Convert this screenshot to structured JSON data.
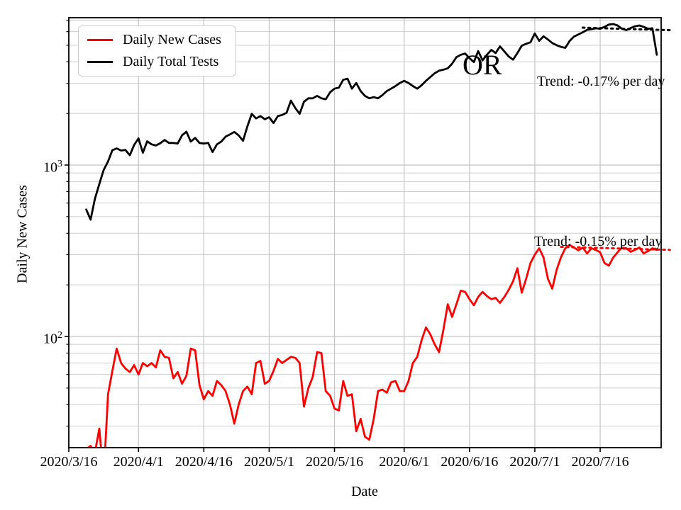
{
  "chart_data": {
    "type": "line",
    "title": "",
    "xlabel": "Date",
    "ylabel": "Daily New Cases",
    "yscale": "log",
    "grid": true,
    "legend_position": "upper-left",
    "xlim": [
      "2020/3/16",
      "2020/7/30"
    ],
    "ylim": [
      22,
      7300
    ],
    "x_ticks": [
      "2020/3/16",
      "2020/4/1",
      "2020/4/16",
      "2020/5/1",
      "2020/5/16",
      "2020/6/1",
      "2020/6/16",
      "2020/7/1",
      "2020/7/16"
    ],
    "y_ticks": [
      {
        "value": 100,
        "base": "10",
        "exp": "2"
      },
      {
        "value": 1000,
        "base": "10",
        "exp": "3"
      }
    ],
    "y_minor_gridlines": [
      30,
      40,
      50,
      60,
      70,
      80,
      90,
      200,
      300,
      400,
      500,
      600,
      700,
      800,
      900,
      2000,
      3000,
      4000,
      5000,
      6000,
      7000
    ],
    "series_start_date": "2020/3/20",
    "frequency": "daily",
    "series": [
      {
        "name": "Daily New Cases",
        "color": "#ff0000",
        "values": [
          22,
          23,
          21,
          29,
          15,
          46,
          63,
          85,
          70,
          65,
          62,
          68,
          60,
          70,
          67,
          70,
          66,
          83,
          76,
          75,
          57,
          62,
          53,
          59,
          85,
          83,
          52,
          43,
          48,
          45,
          55,
          52,
          48,
          40,
          31,
          40,
          48,
          51,
          46,
          70,
          72,
          53,
          55,
          63,
          74,
          70,
          73,
          76,
          75,
          70,
          39,
          50,
          58,
          81,
          80,
          48,
          45,
          38,
          37,
          55,
          45,
          46,
          28,
          33,
          26,
          25,
          33,
          48,
          49,
          47,
          54,
          55,
          48,
          48,
          55,
          70,
          76,
          95,
          113,
          103,
          90,
          81,
          109,
          154,
          130,
          154,
          185,
          182,
          165,
          152,
          170,
          182,
          172,
          165,
          168,
          157,
          170,
          187,
          210,
          250,
          180,
          217,
          268,
          300,
          327,
          289,
          217,
          190,
          244,
          290,
          327,
          342,
          330,
          318,
          330,
          305,
          327,
          320,
          310,
          268,
          259,
          289,
          310,
          330,
          327,
          312,
          320,
          330,
          305,
          315,
          327,
          320
        ]
      },
      {
        "name": "Daily Total Tests",
        "color": "#000000",
        "values": [
          550,
          480,
          635,
          775,
          935,
          1050,
          1220,
          1250,
          1215,
          1225,
          1140,
          1310,
          1430,
          1180,
          1375,
          1320,
          1300,
          1340,
          1400,
          1345,
          1345,
          1335,
          1490,
          1565,
          1370,
          1440,
          1345,
          1335,
          1345,
          1190,
          1320,
          1370,
          1465,
          1510,
          1560,
          1490,
          1385,
          1680,
          1990,
          1870,
          1930,
          1850,
          1900,
          1760,
          1930,
          1960,
          2020,
          2375,
          2150,
          1990,
          2340,
          2450,
          2450,
          2530,
          2450,
          2420,
          2660,
          2790,
          2830,
          3140,
          3190,
          2790,
          3010,
          2700,
          2530,
          2450,
          2490,
          2450,
          2560,
          2700,
          2790,
          2890,
          3010,
          3100,
          3010,
          2890,
          2790,
          2920,
          3100,
          3260,
          3430,
          3550,
          3600,
          3670,
          3900,
          4260,
          4400,
          4470,
          4200,
          3990,
          4620,
          4080,
          4400,
          4700,
          4500,
          4920,
          4600,
          4300,
          4120,
          4500,
          4970,
          5100,
          5200,
          5850,
          5300,
          5640,
          5400,
          5150,
          5000,
          4890,
          4830,
          5300,
          5620,
          5780,
          5950,
          6150,
          6200,
          6280,
          6240,
          6400,
          6600,
          6650,
          6520,
          6240,
          6120,
          6300,
          6450,
          6520,
          6400,
          6240,
          6280,
          4400
        ]
      }
    ],
    "trend_lines": [
      {
        "series": "Daily New Cases",
        "label": "Trend: -0.15% per day",
        "color": "#ff0000",
        "start_date": "2020/7/7",
        "end_date": "2020/8/1",
        "start_value": 333,
        "end_value": 320
      },
      {
        "series": "Daily Total Tests",
        "label": "Trend: -0.17% per day",
        "color": "#000000",
        "start_date": "2020/7/12",
        "end_date": "2020/8/1",
        "start_value": 6330,
        "end_value": 6120
      }
    ],
    "annotations": [
      {
        "text": "OR",
        "color": "#000000"
      }
    ]
  }
}
